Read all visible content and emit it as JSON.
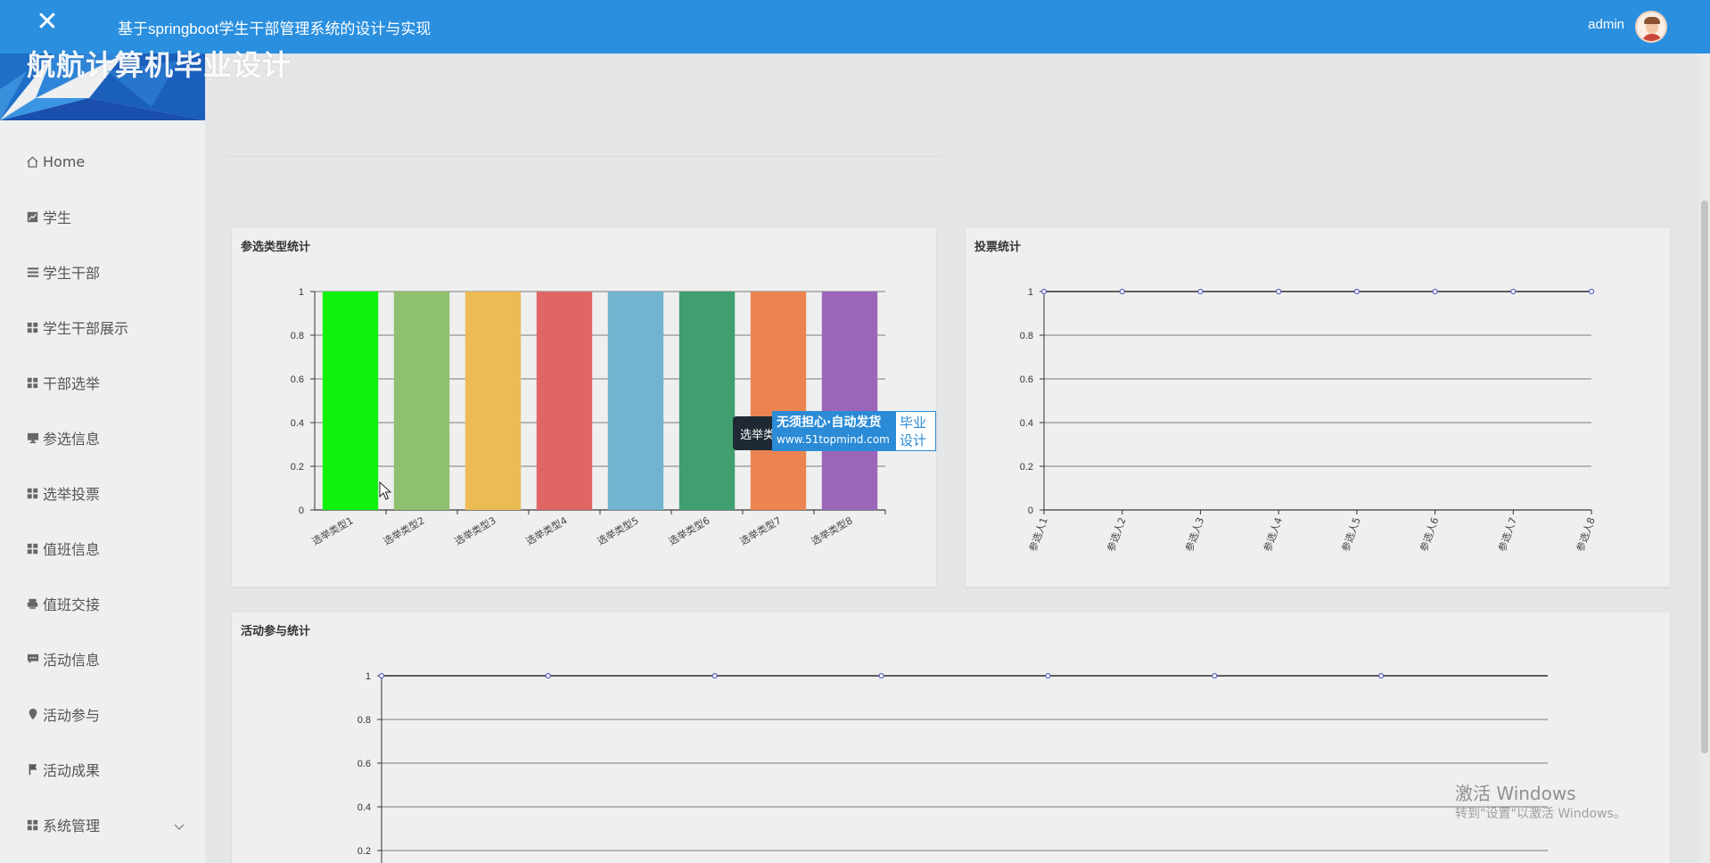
{
  "header": {
    "title": "基于springboot学生干部管理系统的设计与实现",
    "user": "admin",
    "close_icon": "close-icon"
  },
  "sidebar": {
    "brand": "航航计算机毕业设计",
    "items": [
      {
        "label": "Home",
        "icon": "home-icon"
      },
      {
        "label": "学生",
        "icon": "chart-icon"
      },
      {
        "label": "学生干部",
        "icon": "list-icon"
      },
      {
        "label": "学生干部展示",
        "icon": "grid-icon"
      },
      {
        "label": "干部选举",
        "icon": "grid-icon"
      },
      {
        "label": "参选信息",
        "icon": "monitor-icon"
      },
      {
        "label": "选举投票",
        "icon": "grid-icon"
      },
      {
        "label": "值班信息",
        "icon": "grid-icon"
      },
      {
        "label": "值班交接",
        "icon": "printer-icon"
      },
      {
        "label": "活动信息",
        "icon": "message-icon"
      },
      {
        "label": "活动参与",
        "icon": "location-icon"
      },
      {
        "label": "活动成果",
        "icon": "flag-icon"
      },
      {
        "label": "系统管理",
        "icon": "grid-icon"
      }
    ]
  },
  "watermark": {
    "tooltip": "选举类",
    "line1": "无须担心·自动发货",
    "line2": "www.51topmind.com",
    "badge1": "毕业",
    "badge2": "设计"
  },
  "windows": {
    "title": "激活 Windows",
    "subtitle": "转到\"设置\"以激活 Windows。"
  },
  "colors": {
    "header": "#2a8fdf",
    "bar_colors": [
      "#0ef20e",
      "#8fc070",
      "#ebbb55",
      "#e06666",
      "#71b4cf",
      "#409e6f",
      "#ec8452",
      "#9b66b9"
    ]
  },
  "chart_data": [
    {
      "type": "bar",
      "title": "参选类型统计",
      "categories": [
        "选举类型1",
        "选举类型2",
        "选举类型3",
        "选举类型4",
        "选举类型5",
        "选举类型6",
        "选举类型7",
        "选举类型8"
      ],
      "values": [
        1,
        1,
        1,
        1,
        1,
        1,
        1,
        1
      ],
      "yticks": [
        "0",
        "0.2",
        "0.4",
        "0.6",
        "0.8",
        "1"
      ],
      "ylim": [
        0,
        1
      ],
      "grid": true
    },
    {
      "type": "line",
      "title": "投票统计",
      "categories": [
        "参选人1",
        "参选人2",
        "参选人3",
        "参选人4",
        "参选人5",
        "参选人6",
        "参选人7",
        "参选人8"
      ],
      "values": [
        1,
        1,
        1,
        1,
        1,
        1,
        1,
        1
      ],
      "yticks": [
        "0",
        "0.2",
        "0.4",
        "0.6",
        "0.8",
        "1"
      ],
      "ylim": [
        0,
        1
      ],
      "grid": true
    },
    {
      "type": "line",
      "title": "活动参与统计",
      "values": [
        1,
        1,
        1,
        1,
        1,
        1,
        1,
        1
      ],
      "yticks": [
        "0.2",
        "0.4",
        "0.6",
        "0.8",
        "1"
      ],
      "ylim": [
        0,
        1
      ],
      "grid": true
    }
  ]
}
